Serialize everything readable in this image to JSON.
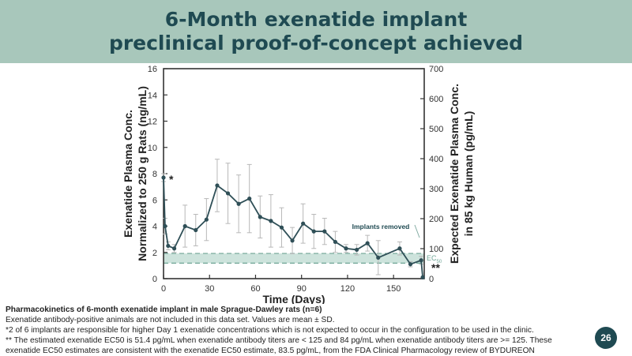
{
  "header": {
    "title_line1": "6-Month exenatide implant",
    "title_line2": "preclinical proof-of-concept achieved"
  },
  "chart_data": {
    "type": "line",
    "xlabel": "Time (Days)",
    "ylabel_left_line1": "Exenatide Plasma Conc.",
    "ylabel_left_line2": "Normalized to 250 g Rats (ng/mL)",
    "ylabel_right_line1": "Expected Exenatide Plasma Conc.",
    "ylabel_right_line2": "in 85 kg Human (pg/mL)",
    "xlim": [
      0,
      170
    ],
    "ylim_left": [
      0,
      16
    ],
    "ylim_right": [
      0,
      700
    ],
    "x_ticks": [
      0,
      30,
      60,
      90,
      120,
      150
    ],
    "y_left_ticks": [
      0,
      2,
      4,
      6,
      8,
      10,
      12,
      14,
      16
    ],
    "y_right_ticks": [
      0,
      100,
      200,
      300,
      400,
      500,
      600,
      700
    ],
    "series": [
      {
        "x": [
          0,
          1,
          3,
          7,
          14,
          21,
          28,
          35,
          42,
          49,
          56,
          63,
          70,
          77,
          84,
          91,
          98,
          105,
          112,
          119,
          126,
          133,
          140,
          154,
          161,
          168,
          169
        ],
        "y": [
          7.7,
          4.0,
          2.5,
          2.3,
          4.0,
          3.7,
          4.5,
          7.1,
          6.5,
          5.7,
          6.1,
          4.7,
          4.4,
          3.9,
          2.9,
          4.2,
          3.6,
          3.6,
          2.8,
          2.3,
          2.2,
          2.7,
          1.6,
          2.3,
          1.1,
          1.4,
          0.1
        ],
        "error": [
          0.3,
          0.6,
          0.3,
          0.3,
          1.6,
          1.2,
          1.6,
          2.0,
          2.3,
          2.2,
          2.6,
          1.6,
          2.0,
          1.5,
          1.0,
          1.5,
          1.3,
          1.0,
          0.8,
          0.3,
          0.4,
          0.6,
          1.3,
          0.5,
          0.2,
          0.3,
          0.0
        ],
        "color": "#2f4f57"
      }
    ],
    "ec50_band_left": [
      1.18,
      1.92
    ],
    "band_color": "#bcd9d0",
    "annotations": {
      "asterisk_day1": "*",
      "asterisk_end": "**",
      "implants_removed": "Implants removed",
      "ec50_label": "EC",
      "ec50_sub": "50"
    }
  },
  "footnotes": {
    "caption": "Pharmacokinetics of 6-month exenatide implant in male Sprague-Dawley rats (n=6)",
    "line1": "Exenatide antibody-positive animals are not included in this data set. Values are mean ± SD.",
    "line2": "*2 of 6 implants are responsible for higher Day 1 exenatide concentrations which is not expected to occur in the configuration to be used in the clinic.",
    "line3": "** The estimated exenatide EC50 is 51.4 pg/mL when exenatide antibody titers are < 125 and 84 pg/mL when exenatide antibody titers are >= 125. These exenatide EC50 estimates are consistent with the exenatide EC50 estimate, 83.5 pg/mL, from the FDA Clinical Pharmacology review of BYDUREON"
  },
  "page_number": "26"
}
